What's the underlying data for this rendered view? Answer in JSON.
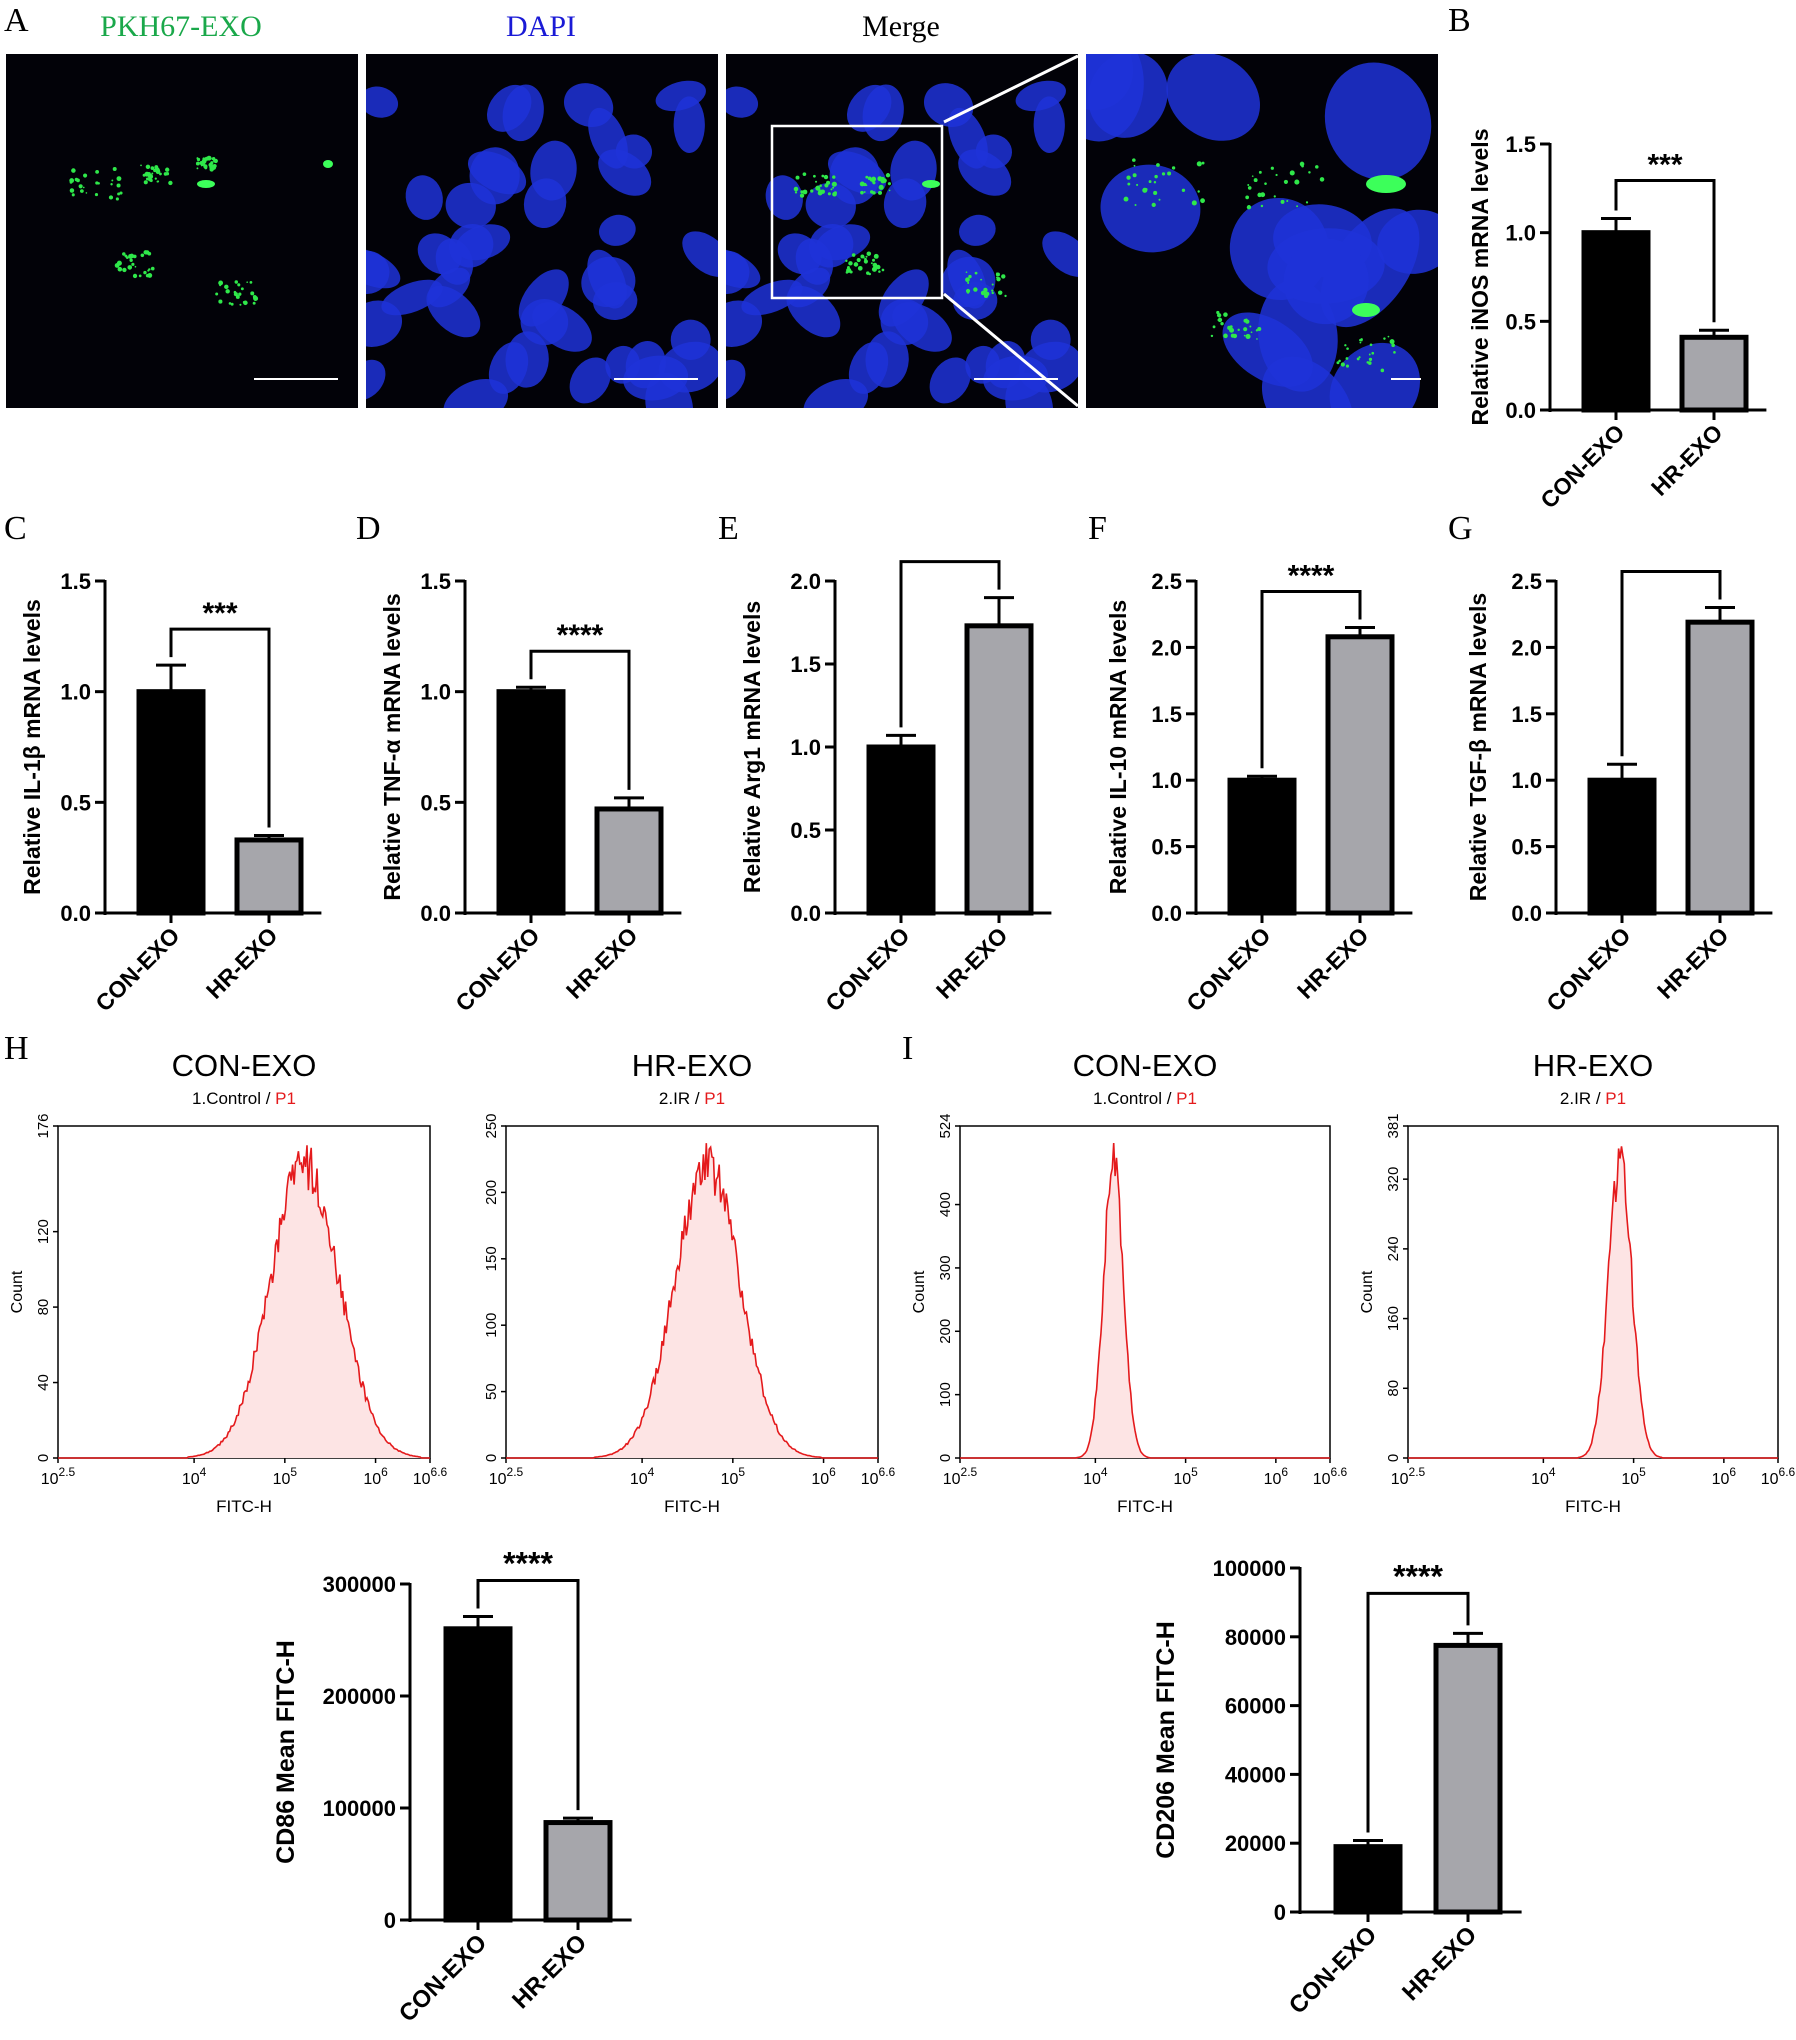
{
  "panel_letters": [
    "A",
    "B",
    "C",
    "D",
    "E",
    "F",
    "G",
    "H",
    "I"
  ],
  "micrographs": [
    {
      "title": "PKH67-EXO",
      "title_color": "#1aa84a",
      "channel": "green"
    },
    {
      "title": "DAPI",
      "title_color": "#1a1ad6",
      "channel": "blue"
    },
    {
      "title": "Merge",
      "title_color": "#000000",
      "channel": "merge"
    },
    {
      "title": "",
      "title_color": "#000000",
      "channel": "zoom"
    }
  ],
  "colors": {
    "con_bar": "#000000",
    "hr_bar": "#a6a6ab",
    "histogram_line": "#e41a1c",
    "histogram_fill": "#fde4e4",
    "gate_label": "#e41a1c"
  },
  "chart_data": [
    {
      "id": "B",
      "type": "bar",
      "categories": [
        "CON-EXO",
        "HR-EXO"
      ],
      "values": [
        1.0,
        0.41
      ],
      "errors": [
        0.08,
        0.04
      ],
      "ylabel": "Relative iNOS mRNA levels",
      "ylim": [
        0,
        1.5
      ],
      "yticks": [
        "0.0",
        "0.5",
        "1.0",
        "1.5"
      ],
      "significance": "***"
    },
    {
      "id": "C",
      "type": "bar",
      "categories": [
        "CON-EXO",
        "HR-EXO"
      ],
      "values": [
        1.0,
        0.33
      ],
      "errors": [
        0.12,
        0.02
      ],
      "ylabel": "Relative IL-1β mRNA levels",
      "ylim": [
        0,
        1.5
      ],
      "yticks": [
        "0.0",
        "0.5",
        "1.0",
        "1.5"
      ],
      "significance": "***"
    },
    {
      "id": "D",
      "type": "bar",
      "categories": [
        "CON-EXO",
        "HR-EXO"
      ],
      "values": [
        1.0,
        0.47
      ],
      "errors": [
        0.02,
        0.05
      ],
      "ylabel": "Relative TNF-α mRNA levels",
      "ylim": [
        0,
        1.5
      ],
      "yticks": [
        "0.0",
        "0.5",
        "1.0",
        "1.5"
      ],
      "significance": "****"
    },
    {
      "id": "E",
      "type": "bar",
      "categories": [
        "CON-EXO",
        "HR-EXO"
      ],
      "values": [
        1.0,
        1.73
      ],
      "errors": [
        0.07,
        0.17
      ],
      "ylabel": "Relative Arg1 mRNA levels",
      "ylim": [
        0,
        2.0
      ],
      "yticks": [
        "0.0",
        "0.5",
        "1.0",
        "1.5",
        "2.0"
      ],
      "significance": "**"
    },
    {
      "id": "F",
      "type": "bar",
      "categories": [
        "CON-EXO",
        "HR-EXO"
      ],
      "values": [
        1.0,
        2.08
      ],
      "errors": [
        0.03,
        0.07
      ],
      "ylabel": "Relative IL-10 mRNA levels",
      "ylim": [
        0,
        2.5
      ],
      "yticks": [
        "0.0",
        "0.5",
        "1.0",
        "1.5",
        "2.0",
        "2.5"
      ],
      "significance": "****"
    },
    {
      "id": "G",
      "type": "bar",
      "categories": [
        "CON-EXO",
        "HR-EXO"
      ],
      "values": [
        1.0,
        2.19
      ],
      "errors": [
        0.12,
        0.11
      ],
      "ylabel": "Relative TGF-β mRNA levels",
      "ylim": [
        0,
        2.5
      ],
      "yticks": [
        "0.0",
        "0.5",
        "1.0",
        "1.5",
        "2.0",
        "2.5"
      ],
      "significance": "***"
    },
    {
      "id": "H-hist-con",
      "type": "area",
      "title": "CON-EXO",
      "subtitle_prefix": "1.Control / ",
      "subtitle_gate": "P1",
      "xlabel": "FITC-H",
      "ylabel": "Count",
      "x_scale": "log",
      "xlim": [
        2.5,
        6.6
      ],
      "xticks": [
        {
          "p": 2.5,
          "e": "2.5"
        },
        {
          "p": 4,
          "e": "4"
        },
        {
          "p": 5,
          "e": "5"
        },
        {
          "p": 6,
          "e": "6"
        },
        {
          "p": 6.6,
          "e": "6.6"
        }
      ],
      "ylim": [
        0,
        176
      ],
      "yticks": [
        "0",
        "40",
        "80",
        "120",
        "176"
      ],
      "peak_log": 5.22,
      "peak_count": 155,
      "spread": 0.38
    },
    {
      "id": "H-hist-hr",
      "type": "area",
      "title": "HR-EXO",
      "subtitle_prefix": "2.IR / ",
      "subtitle_gate": "P1",
      "xlabel": "FITC-H",
      "ylabel": "",
      "x_scale": "log",
      "xlim": [
        2.5,
        6.6
      ],
      "xticks": [
        {
          "p": 2.5,
          "e": "2.5"
        },
        {
          "p": 4,
          "e": "4"
        },
        {
          "p": 5,
          "e": "5"
        },
        {
          "p": 6,
          "e": "6"
        },
        {
          "p": 6.6,
          "e": "6.6"
        }
      ],
      "ylim": [
        0,
        250
      ],
      "yticks": [
        "0",
        "50",
        "100",
        "150",
        "200",
        "250"
      ],
      "peak_log": 4.72,
      "peak_count": 220,
      "spread": 0.36
    },
    {
      "id": "I-hist-con",
      "type": "area",
      "title": "CON-EXO",
      "subtitle_prefix": "1.Control / ",
      "subtitle_gate": "P1",
      "xlabel": "FITC-H",
      "ylabel": "Count",
      "x_scale": "log",
      "xlim": [
        2.5,
        6.6
      ],
      "xticks": [
        {
          "p": 2.5,
          "e": "2.5"
        },
        {
          "p": 4,
          "e": "4"
        },
        {
          "p": 5,
          "e": "5"
        },
        {
          "p": 6,
          "e": "6"
        },
        {
          "p": 6.6,
          "e": "6.6"
        }
      ],
      "ylim": [
        0,
        524
      ],
      "yticks": [
        "0",
        "100",
        "200",
        "300",
        "400",
        "524"
      ],
      "peak_log": 4.2,
      "peak_count": 465,
      "spread": 0.11
    },
    {
      "id": "I-hist-hr",
      "type": "area",
      "title": "HR-EXO",
      "subtitle_prefix": "2.IR / ",
      "subtitle_gate": "P1",
      "xlabel": "FITC-H",
      "ylabel": "Count",
      "x_scale": "log",
      "xlim": [
        2.5,
        6.6
      ],
      "xticks": [
        {
          "p": 2.5,
          "e": "2.5"
        },
        {
          "p": 4,
          "e": "4"
        },
        {
          "p": 5,
          "e": "5"
        },
        {
          "p": 6,
          "e": "6"
        },
        {
          "p": 6.6,
          "e": "6.6"
        }
      ],
      "ylim": [
        0,
        381
      ],
      "yticks": [
        "0",
        "80",
        "160",
        "240",
        "320",
        "381"
      ],
      "peak_log": 4.85,
      "peak_count": 340,
      "spread": 0.13
    },
    {
      "id": "H-mean",
      "type": "bar",
      "categories": [
        "CON-EXO",
        "HR-EXO"
      ],
      "values": [
        260000,
        87000
      ],
      "errors": [
        11000,
        4000
      ],
      "ylabel": "CD86 Mean FITC-H",
      "ylim": [
        0,
        300000
      ],
      "yticks": [
        "0",
        "100000",
        "200000",
        "300000"
      ],
      "significance": "****"
    },
    {
      "id": "I-mean",
      "type": "bar",
      "categories": [
        "CON-EXO",
        "HR-EXO"
      ],
      "values": [
        19000,
        77500
      ],
      "errors": [
        1800,
        3500
      ],
      "ylabel": "CD206 Mean FITC-H",
      "ylim": [
        0,
        100000
      ],
      "yticks": [
        "0",
        "20000",
        "40000",
        "60000",
        "80000",
        "100000"
      ],
      "significance": "****"
    }
  ]
}
